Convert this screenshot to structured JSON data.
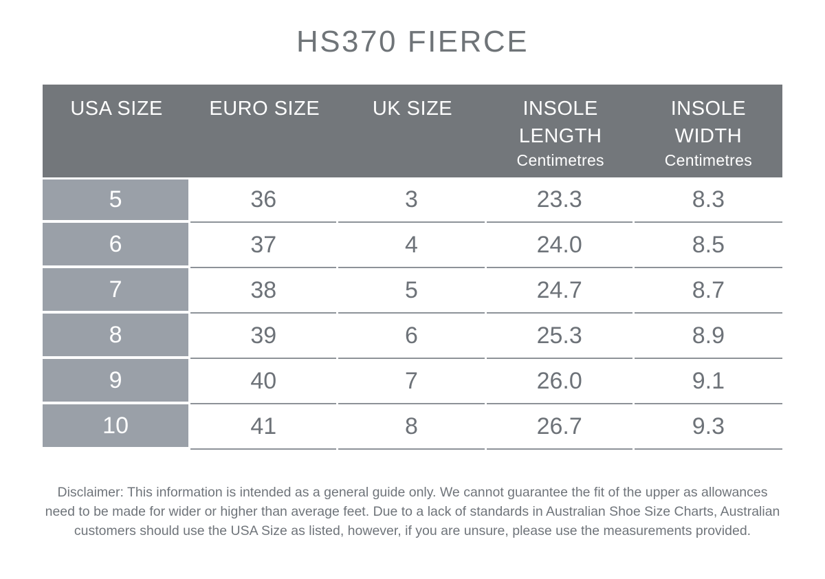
{
  "title": "HS370 FIERCE",
  "colors": {
    "title_text": "#6f7478",
    "header_bg": "#73777b",
    "header_text": "#ffffff",
    "row_label_bg": "#9aa0a8",
    "row_label_text": "#ffffff",
    "cell_text": "#6d7278",
    "row_divider": "#8d9298",
    "disclaimer_text": "#6f747a"
  },
  "table": {
    "headers": [
      {
        "label": "USA SIZE",
        "sub": ""
      },
      {
        "label": "EURO SIZE",
        "sub": ""
      },
      {
        "label": "UK SIZE",
        "sub": ""
      },
      {
        "label": "INSOLE LENGTH",
        "sub": "Centimetres"
      },
      {
        "label": "INSOLE WIDTH",
        "sub": "Centimetres"
      }
    ],
    "rows": [
      [
        "5",
        "36",
        "3",
        "23.3",
        "8.3"
      ],
      [
        "6",
        "37",
        "4",
        "24.0",
        "8.5"
      ],
      [
        "7",
        "38",
        "5",
        "24.7",
        "8.7"
      ],
      [
        "8",
        "39",
        "6",
        "25.3",
        "8.9"
      ],
      [
        "9",
        "40",
        "7",
        "26.0",
        "9.1"
      ],
      [
        "10",
        "41",
        "8",
        "26.7",
        "9.3"
      ]
    ]
  },
  "disclaimer": {
    "lines": [
      "Disclaimer: This information is intended as a general guide only. We cannot guarantee the fit of the upper as allowances",
      "need to be made for wider or higher than average feet. Due to a lack of standards in Australian Shoe Size Charts, Australian",
      "customers should use the USA Size as listed, however, if you are unsure, please use the measurements provided."
    ]
  },
  "chart_data": {
    "type": "table",
    "title": "HS370 FIERCE",
    "columns": [
      "USA SIZE",
      "EURO SIZE",
      "UK SIZE",
      "INSOLE LENGTH (Centimetres)",
      "INSOLE WIDTH (Centimetres)"
    ],
    "rows": [
      [
        5,
        36,
        3,
        23.3,
        8.3
      ],
      [
        6,
        37,
        4,
        24.0,
        8.5
      ],
      [
        7,
        38,
        5,
        24.7,
        8.7
      ],
      [
        8,
        39,
        6,
        25.3,
        8.9
      ],
      [
        9,
        40,
        7,
        26.0,
        9.1
      ],
      [
        10,
        41,
        8,
        26.7,
        9.3
      ]
    ]
  }
}
